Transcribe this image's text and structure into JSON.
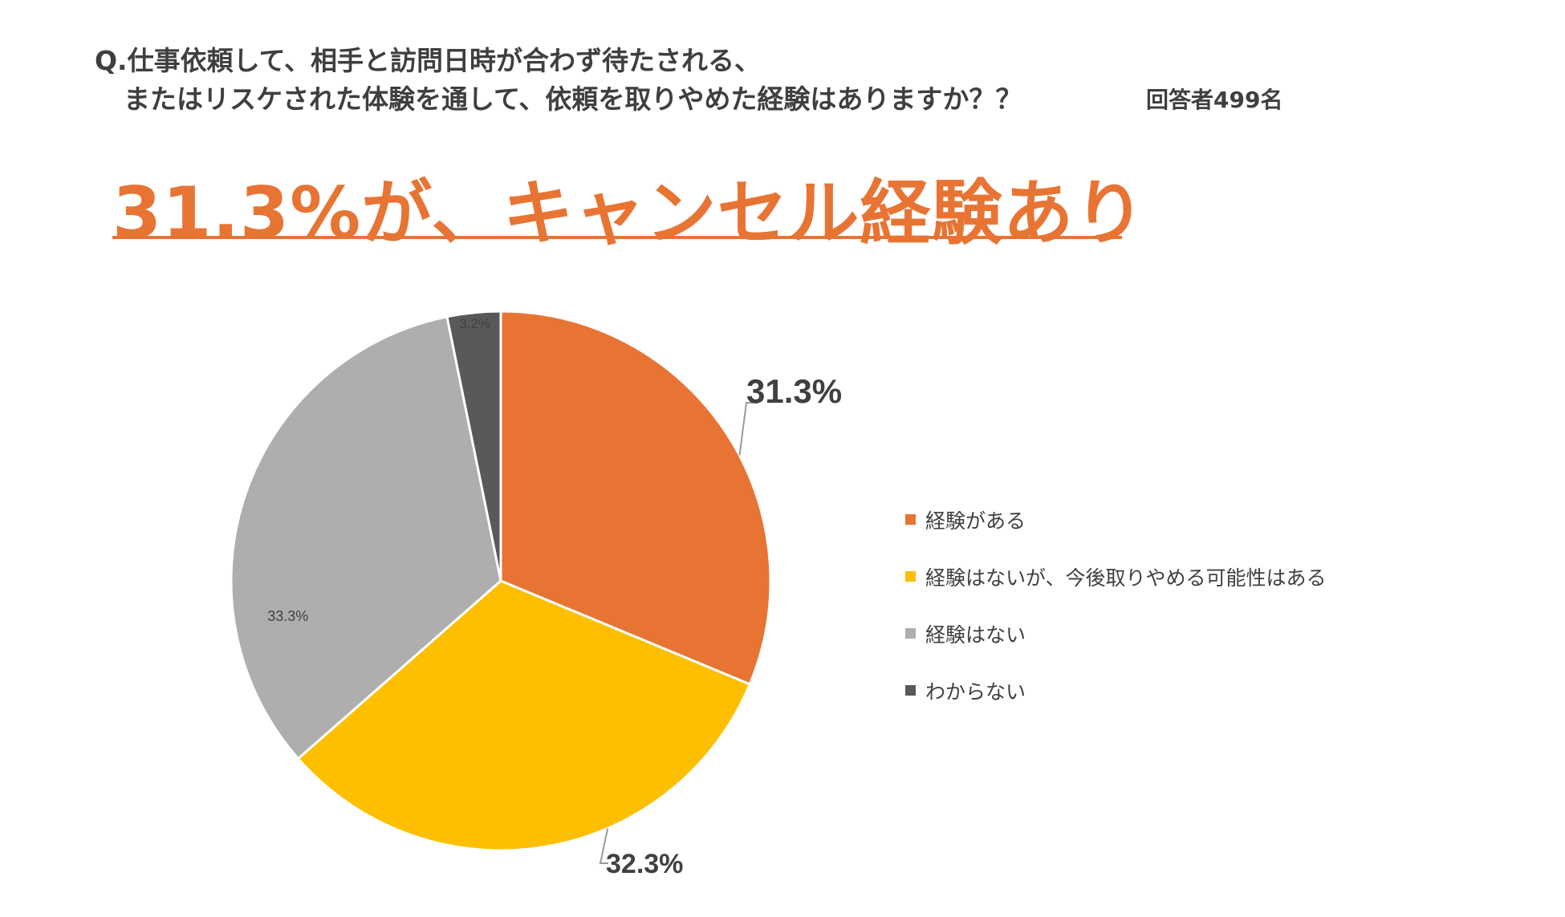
{
  "question": {
    "line1": "Q.仕事依頼して、相手と訪問日時が合わず待たされる、",
    "line2": "またはリスケされた体験を通して、依頼を取りやめた経験はありますか？？"
  },
  "respondents": "回答者499名",
  "headline": "31.3%が、キャンセル経験あり",
  "colors": {
    "accent": "#e87434"
  },
  "chart_data": {
    "type": "pie",
    "title": "",
    "series": [
      {
        "name": "経験がある",
        "value": 31.3,
        "label": "31.3%",
        "color": "#e87434"
      },
      {
        "name": "経験はないが、今後取りやめる可能性はある",
        "value": 32.3,
        "label": "32.3%",
        "color": "#fdbf00"
      },
      {
        "name": "経験はない",
        "value": 33.3,
        "label": "33.3%",
        "color": "#aeaeae"
      },
      {
        "name": "わからない",
        "value": 3.2,
        "label": "3.2%",
        "color": "#595959"
      }
    ],
    "legend_position": "right"
  }
}
